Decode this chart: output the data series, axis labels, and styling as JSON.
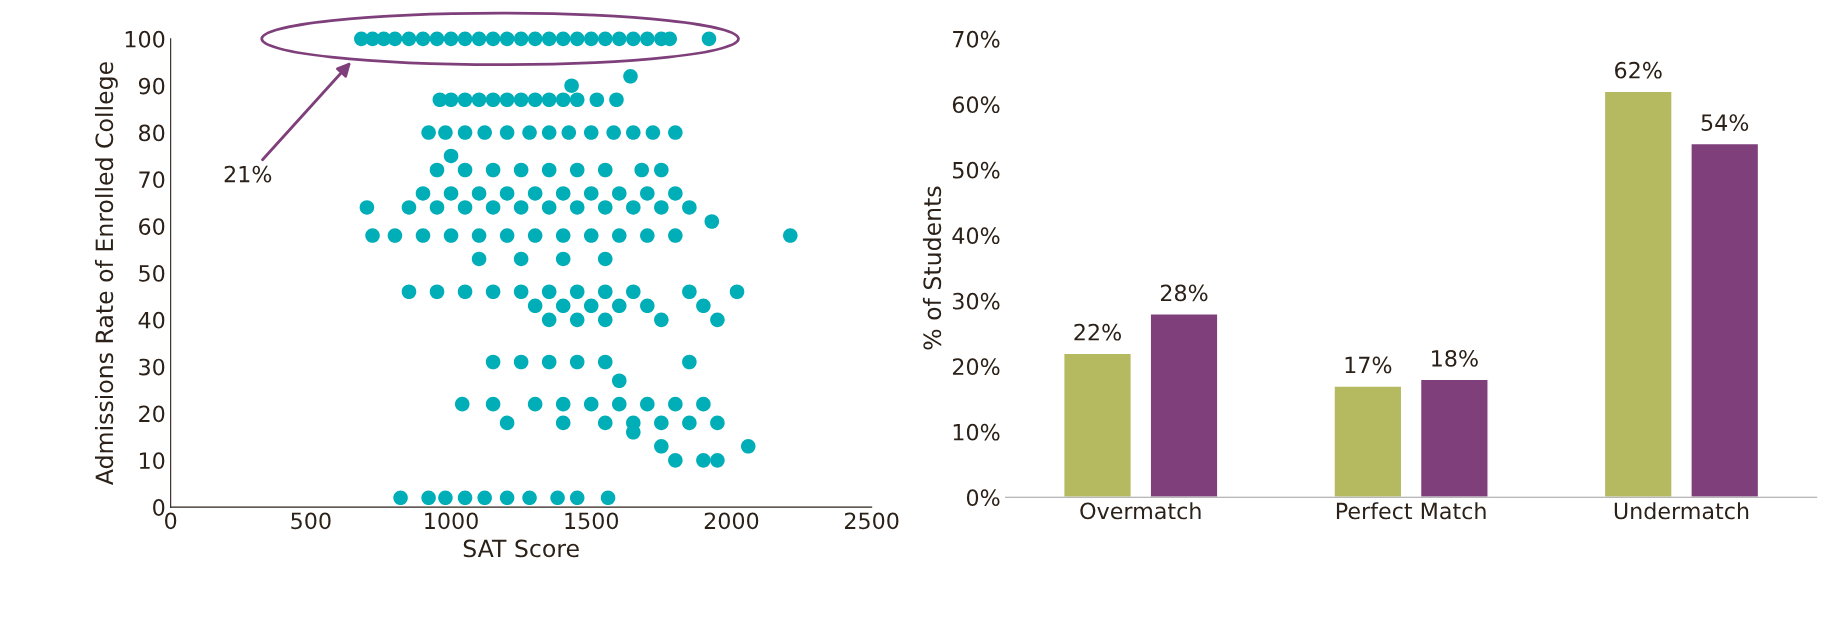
{
  "chart_data": [
    {
      "type": "scatter",
      "xlabel": "SAT Score",
      "ylabel": "Admissions Rate of Enrolled College",
      "xlim": [
        0,
        2500
      ],
      "xticks": [
        0,
        500,
        1000,
        1500,
        2000,
        2500
      ],
      "ylim": [
        0,
        100
      ],
      "yticks": [
        0,
        10,
        20,
        30,
        40,
        50,
        60,
        70,
        80,
        90,
        100
      ],
      "grid": false,
      "marker": "circle",
      "series": [
        {
          "color": "#00aeb8",
          "x": [
            680,
            720,
            760,
            800,
            850,
            900,
            950,
            1000,
            1050,
            1100,
            1150,
            1200,
            1250,
            1300,
            1350,
            1400,
            1450,
            1500,
            1550,
            1600,
            1650,
            1700,
            1750,
            1780,
            1920,
            1640,
            1430,
            960,
            1000,
            1050,
            1100,
            1150,
            1200,
            1250,
            1300,
            1350,
            1400,
            1450,
            1520,
            1590,
            920,
            980,
            1050,
            1120,
            1200,
            1280,
            1350,
            1420,
            1500,
            1580,
            1650,
            1720,
            1800,
            1000,
            950,
            1050,
            1150,
            1250,
            1350,
            1450,
            1550,
            1680,
            1750,
            900,
            1000,
            1100,
            1200,
            1300,
            1400,
            1500,
            1600,
            1700,
            1800,
            700,
            850,
            950,
            1050,
            1150,
            1250,
            1350,
            1450,
            1550,
            1650,
            1750,
            1850,
            720,
            800,
            900,
            1000,
            1100,
            1200,
            1300,
            1400,
            1500,
            1600,
            1700,
            1800,
            1930,
            2210,
            1100,
            1250,
            1400,
            1550,
            850,
            950,
            1050,
            1150,
            1250,
            1350,
            1450,
            1550,
            1650,
            1850,
            2020,
            1300,
            1400,
            1500,
            1600,
            1700,
            1900,
            1350,
            1450,
            1550,
            1750,
            1950,
            1150,
            1250,
            1350,
            1450,
            1550,
            1850,
            1600,
            1040,
            1150,
            1300,
            1400,
            1500,
            1600,
            1700,
            1800,
            1900,
            1200,
            1400,
            1550,
            1650,
            1750,
            1850,
            1950,
            1650,
            1750,
            2060,
            1800,
            1900,
            1950,
            820,
            920,
            980,
            1050,
            1120,
            1200,
            1280,
            1380,
            1450,
            1560
          ],
          "values": [
            100,
            100,
            100,
            100,
            100,
            100,
            100,
            100,
            100,
            100,
            100,
            100,
            100,
            100,
            100,
            100,
            100,
            100,
            100,
            100,
            100,
            100,
            100,
            100,
            100,
            92,
            90,
            87,
            87,
            87,
            87,
            87,
            87,
            87,
            87,
            87,
            87,
            87,
            87,
            87,
            80,
            80,
            80,
            80,
            80,
            80,
            80,
            80,
            80,
            80,
            80,
            80,
            80,
            75,
            72,
            72,
            72,
            72,
            72,
            72,
            72,
            72,
            72,
            67,
            67,
            67,
            67,
            67,
            67,
            67,
            67,
            67,
            67,
            64,
            64,
            64,
            64,
            64,
            64,
            64,
            64,
            64,
            64,
            64,
            64,
            58,
            58,
            58,
            58,
            58,
            58,
            58,
            58,
            58,
            58,
            58,
            58,
            61,
            58,
            53,
            53,
            53,
            53,
            46,
            46,
            46,
            46,
            46,
            46,
            46,
            46,
            46,
            46,
            46,
            43,
            43,
            43,
            43,
            43,
            43,
            40,
            40,
            40,
            40,
            40,
            31,
            31,
            31,
            31,
            31,
            31,
            27,
            22,
            22,
            22,
            22,
            22,
            22,
            22,
            22,
            22,
            18,
            18,
            18,
            18,
            18,
            18,
            18,
            16,
            13,
            13,
            10,
            10,
            10,
            2,
            2,
            2,
            2,
            2,
            2,
            2,
            2,
            2,
            2
          ]
        }
      ],
      "annotations": [
        "21%"
      ]
    },
    {
      "type": "bar",
      "ylabel": "% of Students",
      "categories": [
        "Overmatch",
        "Perfect Match",
        "Undermatch"
      ],
      "ylim": [
        0,
        70
      ],
      "yticks": [
        {
          "value": 0,
          "label": "0%"
        },
        {
          "value": 10,
          "label": "10%"
        },
        {
          "value": 20,
          "label": "20%"
        },
        {
          "value": 30,
          "label": "30%"
        },
        {
          "value": 40,
          "label": "40%"
        },
        {
          "value": 50,
          "label": "50%"
        },
        {
          "value": 60,
          "label": "60%"
        },
        {
          "value": 70,
          "label": "70%"
        }
      ],
      "grid": false,
      "series": [
        {
          "color": "#b5b95f",
          "values": [
            22,
            17,
            62
          ],
          "value_labels": [
            "22%",
            "17%",
            "62%"
          ]
        },
        {
          "color": "#7f3f7b",
          "values": [
            28,
            18,
            54
          ],
          "value_labels": [
            "28%",
            "18%",
            "54%"
          ]
        }
      ]
    }
  ]
}
